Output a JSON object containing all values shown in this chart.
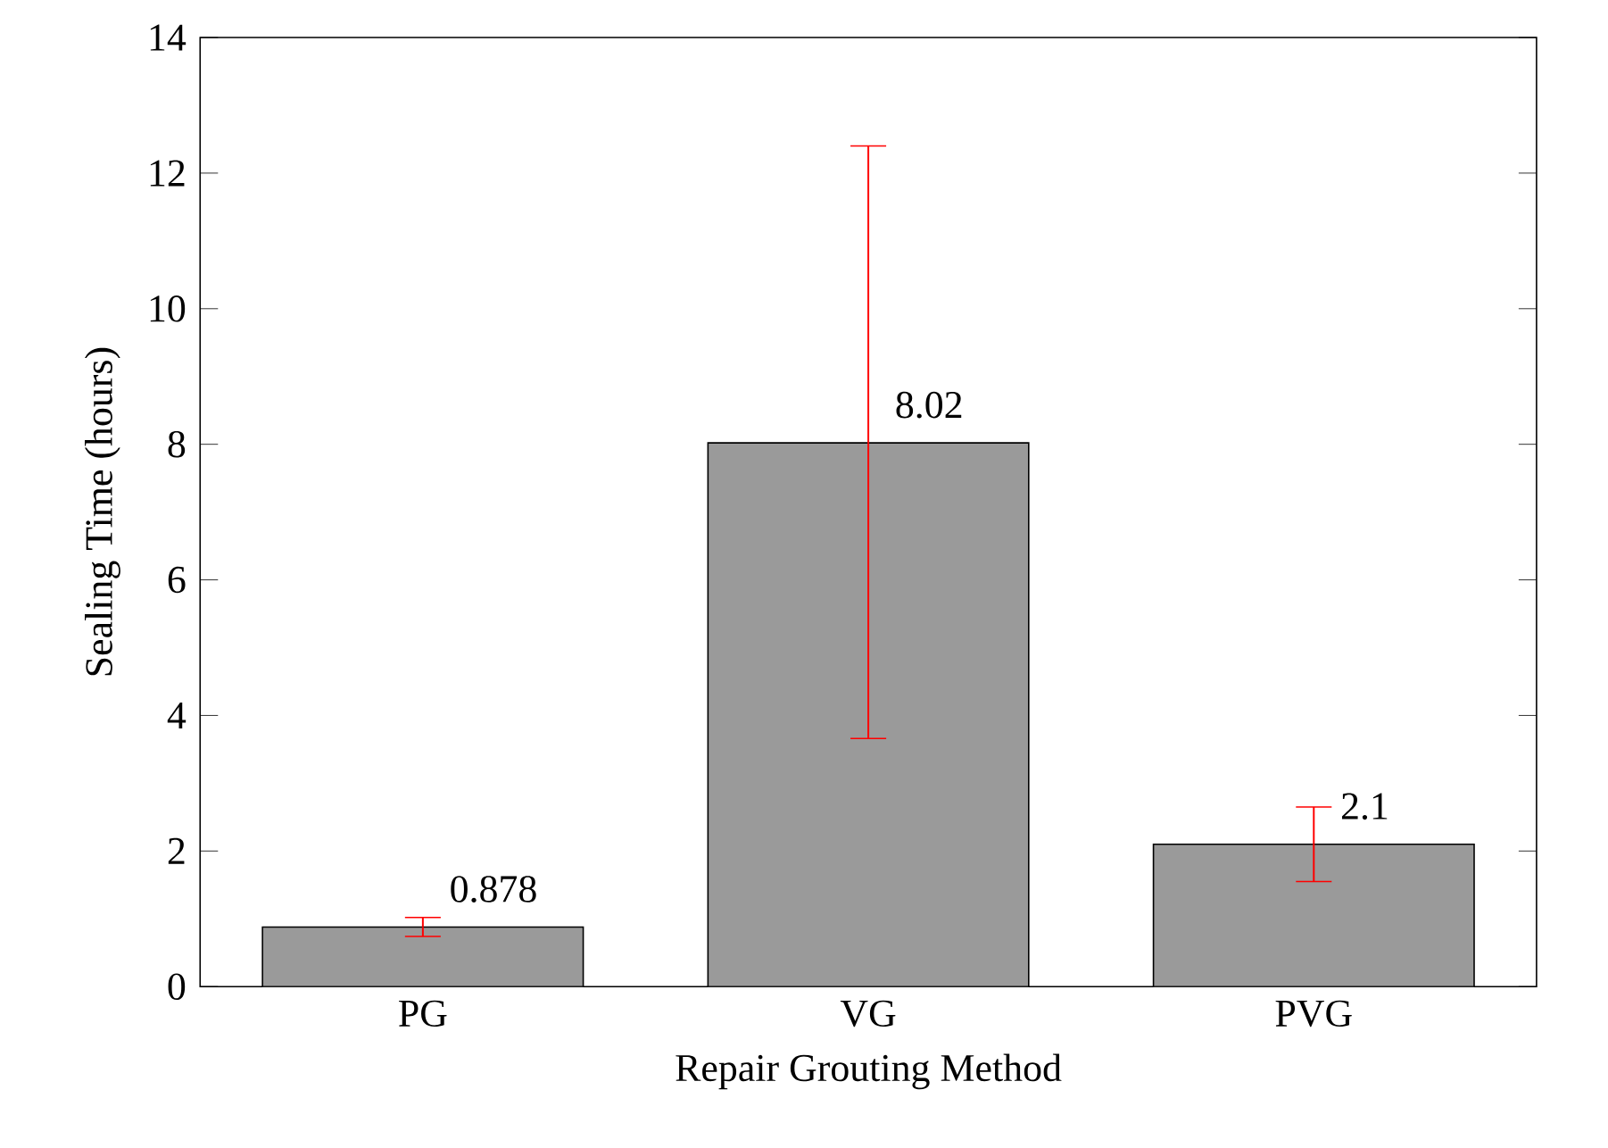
{
  "chart_data": {
    "type": "bar",
    "xlabel": "Repair Grouting Method",
    "ylabel": "Sealing Time (hours)",
    "categories": [
      "PG",
      "VG",
      "PVG"
    ],
    "values": [
      0.878,
      8.02,
      2.1
    ],
    "errors": [
      [
        0.74,
        1.02
      ],
      [
        3.66,
        12.4
      ],
      [
        1.55,
        2.65
      ]
    ],
    "color": "#9a9a9a",
    "value_labels": [
      "0.878",
      "8.02",
      "2.1"
    ],
    "ylim": [
      0,
      14
    ],
    "yticks": [
      0,
      2,
      4,
      6,
      8,
      10,
      12,
      14
    ],
    "grid": false
  }
}
